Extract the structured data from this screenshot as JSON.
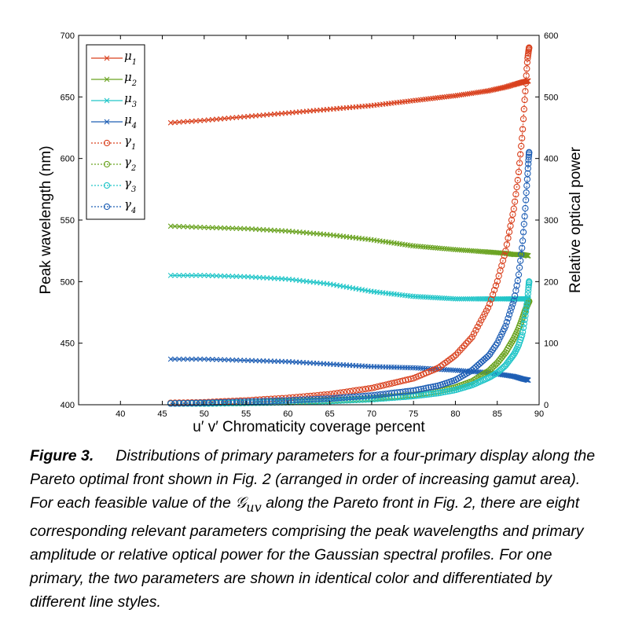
{
  "chart_data": {
    "type": "line",
    "xlabel": "u′ v′ Chromaticity coverage percent",
    "ylabel_left": "Peak wavelength (nm)",
    "ylabel_right": "Relative optical power",
    "xlim": [
      35,
      90
    ],
    "xticks": [
      40,
      45,
      50,
      55,
      60,
      65,
      70,
      75,
      80,
      85,
      90
    ],
    "ylim_left": [
      400,
      700
    ],
    "yticks_left": [
      400,
      450,
      500,
      550,
      600,
      650,
      700
    ],
    "ylim_right": [
      0,
      600
    ],
    "yticks_right": [
      0,
      100,
      200,
      300,
      400,
      500,
      600
    ],
    "legend_position": "top-left",
    "series": [
      {
        "name": "μ1",
        "symbol": "μ",
        "sub": "1",
        "axis": "left",
        "style": "solid-x",
        "color": "#d9411e",
        "x": [
          46,
          50,
          55,
          60,
          65,
          70,
          75,
          80,
          84,
          86,
          87,
          88,
          88.7
        ],
        "y": [
          629,
          631,
          634,
          637,
          640,
          643,
          647,
          651,
          655,
          658,
          660,
          662,
          663
        ]
      },
      {
        "name": "μ2",
        "symbol": "μ",
        "sub": "2",
        "axis": "left",
        "style": "solid-x",
        "color": "#6aa321",
        "x": [
          46,
          50,
          55,
          60,
          65,
          70,
          75,
          80,
          84,
          86,
          87,
          88,
          88.7
        ],
        "y": [
          545,
          544,
          543,
          541,
          538,
          534,
          529,
          526,
          524,
          523,
          522,
          522,
          521
        ]
      },
      {
        "name": "μ3",
        "symbol": "μ",
        "sub": "3",
        "axis": "left",
        "style": "solid-x",
        "color": "#21c5c8",
        "x": [
          46,
          50,
          55,
          60,
          65,
          70,
          75,
          80,
          84,
          86,
          87,
          88,
          88.7
        ],
        "y": [
          505,
          505,
          504,
          502,
          498,
          492,
          488,
          486,
          486,
          486,
          486,
          486,
          486
        ]
      },
      {
        "name": "μ4",
        "symbol": "μ",
        "sub": "4",
        "axis": "left",
        "style": "solid-x",
        "color": "#1f5fb5",
        "x": [
          46,
          50,
          55,
          60,
          65,
          70,
          75,
          80,
          84,
          86,
          87,
          88,
          88.7
        ],
        "y": [
          437,
          437,
          436,
          435,
          433,
          431,
          430,
          428,
          426,
          424,
          423,
          421,
          420
        ]
      },
      {
        "name": "γ1",
        "symbol": "γ",
        "sub": "1",
        "axis": "right",
        "style": "dotted-o",
        "color": "#d9411e",
        "x": [
          46,
          50,
          55,
          60,
          65,
          70,
          75,
          78,
          80,
          82,
          84,
          85,
          86,
          87,
          87.5,
          88,
          88.3,
          88.6,
          88.8
        ],
        "y": [
          3,
          4,
          7,
          11,
          17,
          27,
          43,
          60,
          80,
          110,
          160,
          200,
          250,
          320,
          370,
          440,
          500,
          560,
          580
        ]
      },
      {
        "name": "γ2",
        "symbol": "γ",
        "sub": "2",
        "axis": "right",
        "style": "dotted-o",
        "color": "#6aa321",
        "x": [
          46,
          50,
          55,
          60,
          65,
          70,
          75,
          78,
          80,
          82,
          84,
          85,
          86,
          87,
          87.5,
          88,
          88.3,
          88.6,
          88.8
        ],
        "y": [
          2,
          2,
          3,
          5,
          7,
          10,
          16,
          22,
          28,
          38,
          55,
          68,
          85,
          108,
          122,
          140,
          152,
          162,
          168
        ]
      },
      {
        "name": "γ3",
        "symbol": "γ",
        "sub": "3",
        "axis": "right",
        "style": "dotted-o",
        "color": "#21c5c8",
        "x": [
          46,
          50,
          55,
          60,
          65,
          70,
          75,
          78,
          80,
          82,
          84,
          85,
          86,
          87,
          87.5,
          88,
          88.3,
          88.6,
          88.8
        ],
        "y": [
          2,
          2,
          3,
          4,
          6,
          9,
          14,
          19,
          24,
          32,
          44,
          52,
          64,
          82,
          95,
          115,
          140,
          170,
          200
        ]
      },
      {
        "name": "γ4",
        "symbol": "γ",
        "sub": "4",
        "axis": "right",
        "style": "dotted-o",
        "color": "#1f5fb5",
        "x": [
          46,
          50,
          55,
          60,
          65,
          70,
          75,
          78,
          80,
          82,
          84,
          85,
          86,
          87,
          87.5,
          88,
          88.3,
          88.6,
          88.8
        ],
        "y": [
          2,
          3,
          5,
          7,
          10,
          15,
          23,
          31,
          40,
          56,
          80,
          100,
          128,
          170,
          205,
          260,
          310,
          370,
          410
        ]
      }
    ]
  },
  "caption": {
    "figure_label": "Figure 3.",
    "text_before_symbol": "Distributions of primary parameters for a four-primary display along the Pareto optimal front shown in Fig. 2 (arranged in order of increasing gamut area).  For each feasible value of the",
    "symbol": "𝒢",
    "symbol_sub": "uv",
    "text_after_symbol": "along the Pareto front in Fig. 2, there are eight corresponding relevant parameters comprising the peak wavelengths and primary amplitude or relative optical power for the Gaussian spectral profiles. For one primary, the two parameters are shown in identical color and differentiated by different line styles."
  }
}
